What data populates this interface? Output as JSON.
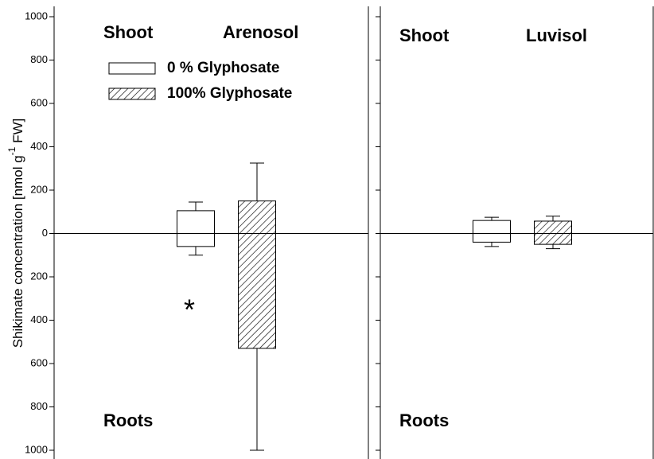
{
  "chart_data": [
    {
      "type": "bar",
      "categories": [
        "Shoot",
        "Roots"
      ],
      "title": "Arenosol",
      "ylabel": [
        "Shikimate concentration [nmol g",
        "-1",
        " FW]"
      ],
      "ylim": [
        -1000,
        1000
      ],
      "yticks": [
        {
          "value": -1000,
          "label": "1000"
        },
        {
          "value": -800,
          "label": "800"
        },
        {
          "value": -600,
          "label": "600"
        },
        {
          "value": -400,
          "label": "400"
        },
        {
          "value": -200,
          "label": "200"
        },
        0,
        200,
        400,
        600,
        800,
        1000
      ],
      "legend": "upper left",
      "annotations": [
        "*"
      ],
      "series": [
        {
          "name": "0 % Glyphosate",
          "color": "#ffffff",
          "hatch": false,
          "values": [
            105,
            -60
          ],
          "errors": [
            40,
            40
          ]
        },
        {
          "name": "100% Glyphosate",
          "color": "#ffffff",
          "hatch": true,
          "values": [
            150,
            -530
          ],
          "errors": [
            175,
            470
          ]
        }
      ]
    },
    {
      "type": "bar",
      "categories": [
        "Shoot",
        "Roots"
      ],
      "title": "Luvisol",
      "ylim": [
        -1000,
        1000
      ],
      "series": [
        {
          "name": "0 % Glyphosate",
          "color": "#ffffff",
          "hatch": false,
          "values": [
            60,
            -40
          ],
          "errors": [
            15,
            20
          ]
        },
        {
          "name": "100% Glyphosate",
          "color": "#ffffff",
          "hatch": true,
          "values": [
            57,
            -50
          ],
          "errors": [
            23,
            20
          ]
        }
      ]
    }
  ]
}
